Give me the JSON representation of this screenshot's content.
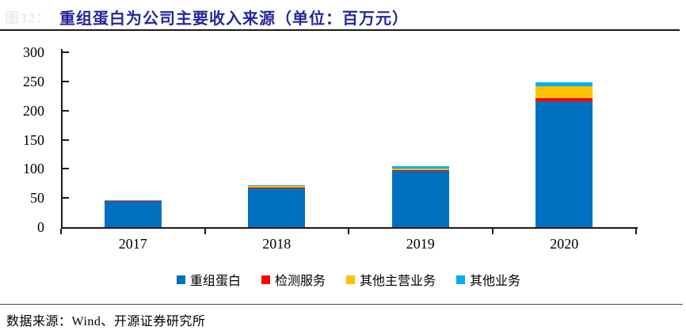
{
  "header": {
    "faded_label": "图32：",
    "title": "重组蛋白为公司主要收入来源（单位：百万元）"
  },
  "footer": {
    "source": "数据来源：Wind、开源证券研究所"
  },
  "colors": {
    "title_navy": "#26279b",
    "axis": "#1a1a1a",
    "series_blue": "#0070c0",
    "series_red": "#ff0000",
    "series_yellow": "#ffc000",
    "series_cyan": "#00b0f0"
  },
  "chart_data": {
    "type": "bar",
    "stacked": true,
    "title": "重组蛋白为公司主要收入来源（单位：百万元）",
    "categories": [
      "2017",
      "2018",
      "2019",
      "2020"
    ],
    "series": [
      {
        "name": "重组蛋白",
        "color": "#0070c0",
        "values": [
          44,
          67,
          96,
          216
        ]
      },
      {
        "name": "检测服务",
        "color": "#ff0000",
        "values": [
          0.3,
          0.5,
          2,
          5
        ]
      },
      {
        "name": "其他主营业务",
        "color": "#ffc000",
        "values": [
          1.5,
          2.5,
          3,
          20
        ]
      },
      {
        "name": "其他业务",
        "color": "#00b0f0",
        "values": [
          0.3,
          2,
          3.5,
          7
        ]
      }
    ],
    "xlabel": "",
    "ylabel": "",
    "ylim": [
      0,
      300
    ],
    "ytick_step": 50,
    "yticks": [
      0,
      50,
      100,
      150,
      200,
      250,
      300
    ],
    "grid": false,
    "legend_position": "bottom"
  }
}
